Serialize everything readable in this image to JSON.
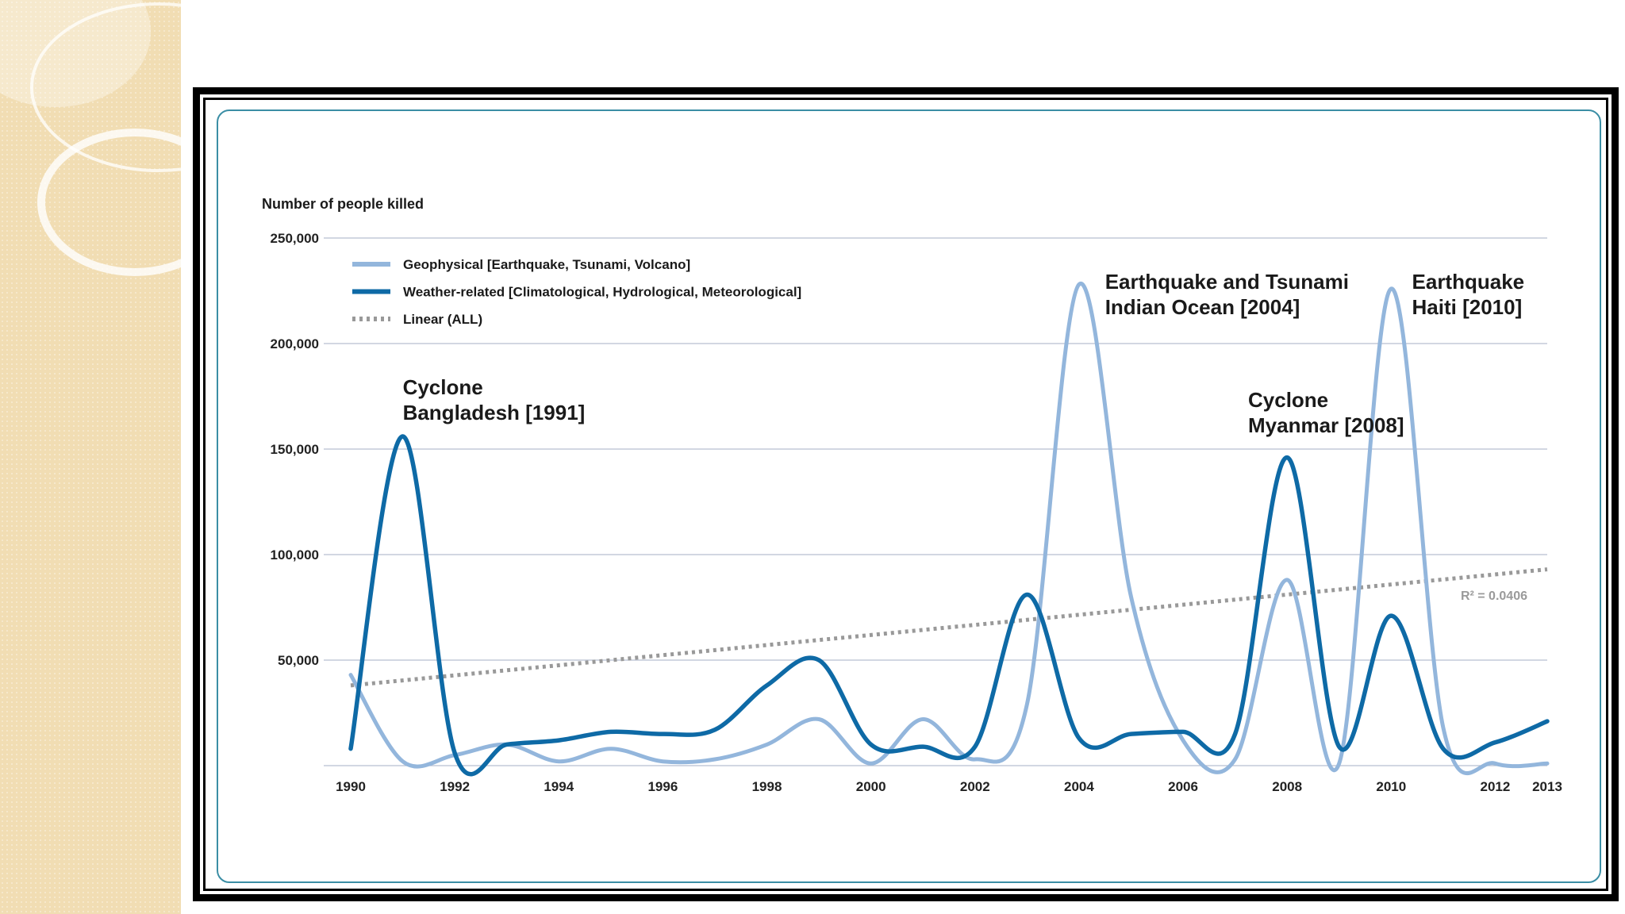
{
  "colors": {
    "geophysical": "#93b6dc",
    "weather": "#0e6aa6",
    "linear": "#999999",
    "grid": "#b8bfd0",
    "card_border": "#3b8ea5",
    "side_panel": "#f1ddb3"
  },
  "chart_data": {
    "type": "line",
    "ylabel": "Number of people killed",
    "ylim": [
      0,
      250000
    ],
    "y_ticks": [
      {
        "value": 50000,
        "label": "50,000"
      },
      {
        "value": 100000,
        "label": "100,000"
      },
      {
        "value": 150000,
        "label": "150,000"
      },
      {
        "value": 200000,
        "label": "200,000"
      },
      {
        "value": 250000,
        "label": "250,000"
      }
    ],
    "xlim": [
      1990,
      2013
    ],
    "x_ticks": [
      {
        "value": 1990,
        "label": "1990"
      },
      {
        "value": 1992,
        "label": "1992"
      },
      {
        "value": 1994,
        "label": "1994"
      },
      {
        "value": 1996,
        "label": "1996"
      },
      {
        "value": 1998,
        "label": "1998"
      },
      {
        "value": 2000,
        "label": "2000"
      },
      {
        "value": 2002,
        "label": "2002"
      },
      {
        "value": 2004,
        "label": "2004"
      },
      {
        "value": 2006,
        "label": "2006"
      },
      {
        "value": 2008,
        "label": "2008"
      },
      {
        "value": 2010,
        "label": "2010"
      },
      {
        "value": 2012,
        "label": "2012"
      },
      {
        "value": 2013,
        "label": "2013"
      }
    ],
    "grid": true,
    "legend_position": "top-left",
    "x": [
      1990,
      1991,
      1992,
      1993,
      1994,
      1995,
      1996,
      1997,
      1998,
      1999,
      2000,
      2001,
      2002,
      2003,
      2004,
      2005,
      2006,
      2007,
      2008,
      2009,
      2010,
      2011,
      2012,
      2013
    ],
    "series": [
      {
        "name": "Geophysical [Earthquake, Tsunami, Volcano]",
        "color_key": "geophysical",
        "values": [
          43000,
          2000,
          5000,
          10000,
          2000,
          8000,
          2000,
          3000,
          10000,
          22000,
          1000,
          22000,
          3000,
          29000,
          228000,
          80000,
          12000,
          3000,
          88000,
          1000,
          226000,
          18000,
          1000,
          1000
        ]
      },
      {
        "name": "Weather-related [Climatological, Hydrological, Meteorological]",
        "color_key": "weather",
        "values": [
          8000,
          156000,
          6000,
          10000,
          12000,
          16000,
          15000,
          17000,
          38000,
          50000,
          10000,
          9000,
          9000,
          81000,
          13000,
          15000,
          16000,
          15000,
          146000,
          9000,
          71000,
          8000,
          11000,
          21000
        ]
      }
    ],
    "trend": {
      "name": "Linear (ALL)",
      "start": [
        1990,
        38000
      ],
      "end": [
        2013,
        93000
      ],
      "r2_label": "R² = 0.0406"
    },
    "annotations": [
      {
        "lines": [
          "Cyclone",
          "Bangladesh [1991]"
        ],
        "x": 1991,
        "y": 176000
      },
      {
        "lines": [
          "Earthquake and Tsunami",
          "Indian Ocean [2004]"
        ],
        "x": 2004.5,
        "y": 226000
      },
      {
        "lines": [
          "Cyclone",
          "Myanmar [2008]"
        ],
        "x": 2007.25,
        "y": 170000
      },
      {
        "lines": [
          "Earthquake",
          "Haiti [2010]"
        ],
        "x": 2010.4,
        "y": 226000
      }
    ]
  }
}
